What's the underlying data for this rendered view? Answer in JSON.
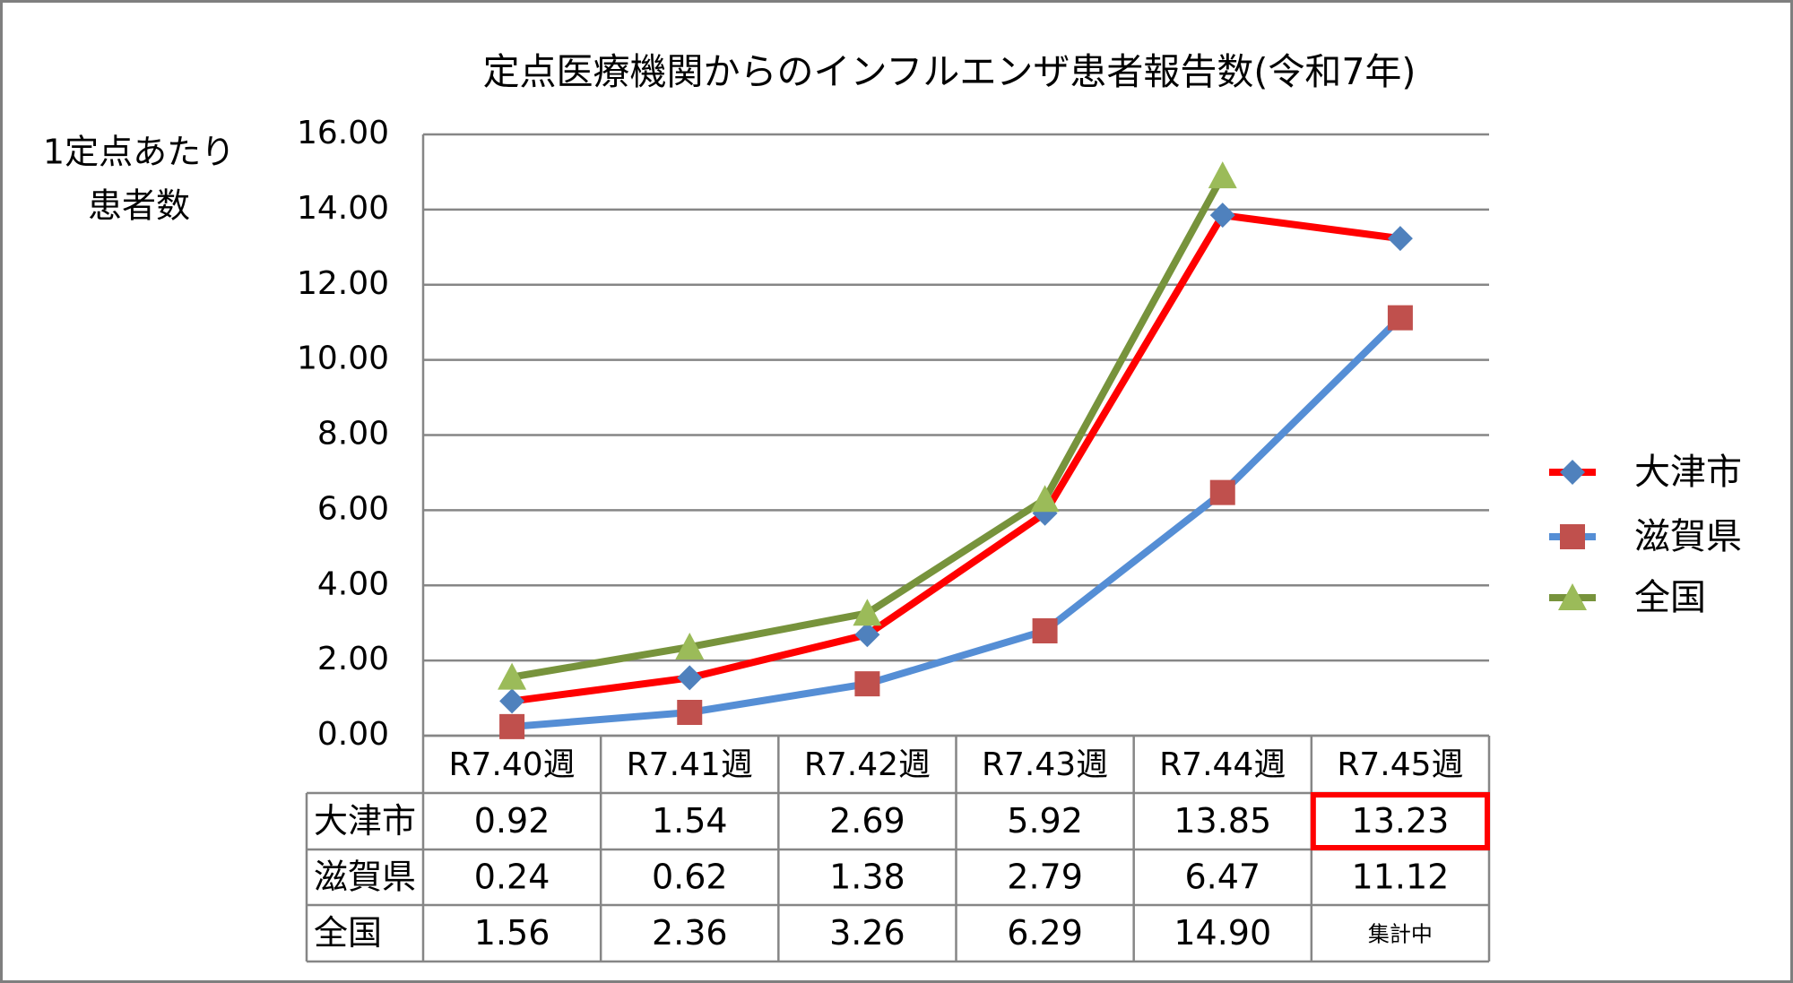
{
  "chart_data": {
    "type": "line",
    "title": "定点医療機関からのインフルエンザ患者報告数(令和7年)",
    "y_label": [
      "1定点あたり",
      "患者数"
    ],
    "categories": [
      "R7.40週",
      "R7.41週",
      "R7.42週",
      "R7.43週",
      "R7.44週",
      "R7.45週"
    ],
    "series": [
      {
        "name": "大津市",
        "color": "#ff0000",
        "marker": "diamond",
        "marker_color": "#4f81bd",
        "values": [
          0.92,
          1.54,
          2.69,
          5.92,
          13.85,
          13.23
        ],
        "value_labels": [
          "0.92",
          "1.54",
          "2.69",
          "5.92",
          "13.85",
          "13.23"
        ]
      },
      {
        "name": "滋賀県",
        "color": "#558ed5",
        "marker": "square",
        "marker_color": "#c0504d",
        "values": [
          0.24,
          0.62,
          1.38,
          2.79,
          6.47,
          11.12
        ],
        "value_labels": [
          "0.24",
          "0.62",
          "1.38",
          "2.79",
          "6.47",
          "11.12"
        ]
      },
      {
        "name": "全国",
        "color": "#77933c",
        "marker": "triangle",
        "marker_color": "#9bbb59",
        "values": [
          1.56,
          2.36,
          3.26,
          6.29,
          14.9,
          null
        ],
        "value_labels": [
          "1.56",
          "2.36",
          "3.26",
          "6.29",
          "14.90",
          "集計中"
        ]
      }
    ],
    "ylim": [
      0,
      16
    ],
    "yticks": [
      {
        "value": 0,
        "label": "0.00"
      },
      {
        "value": 2,
        "label": "2.00"
      },
      {
        "value": 4,
        "label": "4.00"
      },
      {
        "value": 6,
        "label": "6.00"
      },
      {
        "value": 8,
        "label": "8.00"
      },
      {
        "value": 10,
        "label": "10.00"
      },
      {
        "value": 12,
        "label": "12.00"
      },
      {
        "value": 14,
        "label": "14.00"
      },
      {
        "value": 16,
        "label": "16.00"
      }
    ],
    "grid": true,
    "legend": "right"
  }
}
